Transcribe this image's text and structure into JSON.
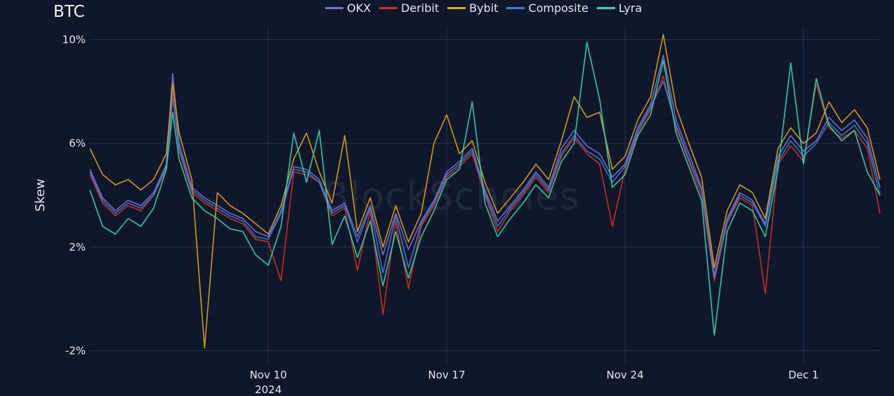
{
  "chart_data": {
    "type": "line",
    "title": "BTC",
    "watermark": "BlockScholes",
    "ylabel": "Skew",
    "ylim": [
      -2.5,
      10.5
    ],
    "y_ticks": [
      {
        "value": -2,
        "label": "-2%"
      },
      {
        "value": 2,
        "label": "2%"
      },
      {
        "value": 6,
        "label": "6%"
      },
      {
        "value": 10,
        "label": "10%"
      }
    ],
    "xlim": [
      0,
      31
    ],
    "x_ticks": [
      {
        "value": 7,
        "label": "Nov 10",
        "sublabel": "2024"
      },
      {
        "value": 14,
        "label": "Nov 17",
        "sublabel": ""
      },
      {
        "value": 21,
        "label": "Nov 24",
        "sublabel": ""
      },
      {
        "value": 28,
        "label": "Dec 1",
        "sublabel": ""
      }
    ],
    "legend_position": "top-center",
    "grid": true,
    "series": [
      {
        "name": "OKX",
        "color": "#7c6fd6",
        "x": [
          0,
          0.5,
          1,
          1.5,
          2,
          2.5,
          3,
          3.25,
          3.5,
          4,
          4.5,
          5,
          5.5,
          6,
          6.5,
          7,
          7.5,
          8,
          8.5,
          9,
          9.5,
          10,
          10.5,
          11,
          11.5,
          12,
          12.5,
          13,
          13.5,
          14,
          14.5,
          15,
          15.5,
          16,
          16.5,
          17,
          17.5,
          18,
          18.5,
          19,
          19.5,
          20,
          20.5,
          21,
          21.5,
          22,
          22.5,
          23,
          23.5,
          24,
          24.5,
          25,
          25.5,
          26,
          26.5,
          27,
          27.5,
          28,
          28.5,
          29,
          29.5,
          30,
          30.5,
          31
        ],
        "y": [
          5.0,
          3.9,
          3.4,
          3.8,
          3.6,
          4.1,
          5.2,
          8.7,
          6.0,
          4.3,
          3.9,
          3.6,
          3.3,
          3.1,
          2.6,
          2.4,
          3.4,
          5.1,
          5.0,
          4.6,
          3.4,
          3.7,
          2.4,
          3.6,
          1.7,
          3.3,
          1.9,
          3.0,
          3.8,
          4.9,
          5.3,
          5.8,
          4.2,
          3.0,
          3.6,
          4.2,
          4.9,
          4.3,
          5.8,
          6.5,
          5.9,
          5.6,
          4.7,
          5.2,
          6.6,
          7.5,
          9.4,
          6.9,
          5.6,
          4.3,
          0.9,
          3.1,
          4.1,
          3.8,
          2.9,
          5.5,
          6.3,
          5.7,
          6.1,
          7.0,
          6.5,
          6.9,
          6.2,
          4.3
        ]
      },
      {
        "name": "Deribit",
        "color": "#d72f1f",
        "x": [
          0,
          0.5,
          1,
          1.5,
          2,
          2.5,
          3,
          3.25,
          3.5,
          4,
          4.5,
          5,
          5.5,
          6,
          6.5,
          7,
          7.5,
          8,
          8.5,
          9,
          9.5,
          10,
          10.5,
          11,
          11.5,
          12,
          12.5,
          13,
          13.5,
          14,
          14.5,
          15,
          15.5,
          16,
          16.5,
          17,
          17.5,
          18,
          18.5,
          19,
          19.5,
          20,
          20.5,
          21,
          21.5,
          22,
          22.5,
          23,
          23.5,
          24,
          24.5,
          25,
          25.5,
          26,
          26.5,
          27,
          27.5,
          28,
          28.5,
          29,
          29.5,
          30,
          30.5,
          31
        ],
        "y": [
          4.8,
          3.7,
          3.2,
          3.6,
          3.4,
          4.0,
          5.0,
          8.0,
          5.7,
          4.1,
          3.7,
          3.4,
          3.1,
          2.9,
          2.3,
          2.2,
          0.7,
          4.9,
          4.8,
          4.5,
          3.2,
          3.5,
          1.1,
          3.4,
          -0.6,
          3.0,
          0.4,
          2.8,
          3.6,
          4.7,
          5.1,
          5.6,
          4.0,
          2.6,
          3.4,
          4.0,
          4.7,
          4.1,
          5.5,
          6.2,
          5.6,
          5.2,
          2.8,
          5.0,
          6.4,
          7.3,
          8.6,
          6.6,
          5.3,
          4.0,
          0.7,
          2.9,
          3.9,
          3.6,
          0.2,
          5.2,
          5.9,
          5.3,
          8.3,
          6.6,
          6.2,
          6.5,
          5.8,
          3.3
        ]
      },
      {
        "name": "Bybit",
        "color": "#e0a414",
        "x": [
          0,
          0.5,
          1,
          1.5,
          2,
          2.5,
          3,
          3.25,
          3.5,
          4,
          4.5,
          5,
          5.5,
          6,
          6.5,
          7,
          7.5,
          8,
          8.5,
          9,
          9.5,
          10,
          10.5,
          11,
          11.5,
          12,
          12.5,
          13,
          13.5,
          14,
          14.5,
          15,
          15.5,
          16,
          16.5,
          17,
          17.5,
          18,
          18.5,
          19,
          19.5,
          20,
          20.5,
          21,
          21.5,
          22,
          22.5,
          23,
          23.5,
          24,
          24.5,
          25,
          25.5,
          26,
          26.5,
          27,
          27.5,
          28,
          28.5,
          29,
          29.5,
          30,
          30.5,
          31
        ],
        "y": [
          5.8,
          4.8,
          4.4,
          4.6,
          4.2,
          4.6,
          5.6,
          8.3,
          6.4,
          4.6,
          -1.9,
          4.1,
          3.6,
          3.3,
          2.9,
          2.5,
          3.6,
          5.4,
          6.4,
          4.9,
          3.7,
          6.3,
          2.6,
          3.9,
          2.0,
          3.6,
          2.2,
          3.3,
          6.0,
          7.1,
          5.6,
          6.1,
          4.5,
          3.3,
          3.9,
          4.5,
          5.2,
          4.6,
          6.1,
          7.8,
          7.0,
          7.2,
          5.0,
          5.5,
          6.9,
          7.8,
          10.2,
          7.4,
          6.0,
          4.7,
          1.2,
          3.4,
          4.4,
          4.1,
          3.1,
          5.8,
          6.6,
          6.0,
          6.4,
          7.6,
          6.8,
          7.3,
          6.6,
          4.6
        ]
      },
      {
        "name": "Composite",
        "color": "#3b7dd8",
        "x": [
          0,
          0.5,
          1,
          1.5,
          2,
          2.5,
          3,
          3.25,
          3.5,
          4,
          4.5,
          5,
          5.5,
          6,
          6.5,
          7,
          7.5,
          8,
          8.5,
          9,
          9.5,
          10,
          10.5,
          11,
          11.5,
          12,
          12.5,
          13,
          13.5,
          14,
          14.5,
          15,
          15.5,
          16,
          16.5,
          17,
          17.5,
          18,
          18.5,
          19,
          19.5,
          20,
          20.5,
          21,
          21.5,
          22,
          22.5,
          23,
          23.5,
          24,
          24.5,
          25,
          25.5,
          26,
          26.5,
          27,
          27.5,
          28,
          28.5,
          29,
          29.5,
          30,
          30.5,
          31
        ],
        "y": [
          4.9,
          3.8,
          3.3,
          3.7,
          3.5,
          4.0,
          5.1,
          7.8,
          5.8,
          4.2,
          3.8,
          3.5,
          3.2,
          3.0,
          2.4,
          2.3,
          3.3,
          5.0,
          4.9,
          4.5,
          3.3,
          3.6,
          2.2,
          3.5,
          1.0,
          3.2,
          1.2,
          2.9,
          3.7,
          4.8,
          5.2,
          5.7,
          4.1,
          2.8,
          3.5,
          4.1,
          4.8,
          4.2,
          5.6,
          6.3,
          5.7,
          5.4,
          4.5,
          5.1,
          6.5,
          7.4,
          8.4,
          6.7,
          5.4,
          4.2,
          0.8,
          3.0,
          4.0,
          3.7,
          2.8,
          5.3,
          6.1,
          5.5,
          6.0,
          6.8,
          6.3,
          6.7,
          6.0,
          4.0
        ]
      },
      {
        "name": "Lyra",
        "color": "#2ad9ae",
        "x": [
          0,
          0.5,
          1,
          1.5,
          2,
          2.5,
          3,
          3.25,
          3.5,
          4,
          4.5,
          5,
          5.5,
          6,
          6.5,
          7,
          7.5,
          8,
          8.5,
          9,
          9.5,
          10,
          10.5,
          11,
          11.5,
          12,
          12.5,
          13,
          13.5,
          14,
          14.5,
          15,
          15.5,
          16,
          16.5,
          17,
          17.5,
          18,
          18.5,
          19,
          19.5,
          20,
          20.5,
          21,
          21.5,
          22,
          22.5,
          23,
          23.5,
          24,
          24.5,
          25,
          25.5,
          26,
          26.5,
          27,
          27.5,
          28,
          28.5,
          29,
          29.5,
          30,
          30.5,
          31
        ],
        "y": [
          4.2,
          2.8,
          2.5,
          3.1,
          2.8,
          3.5,
          5.0,
          7.2,
          5.4,
          3.9,
          3.4,
          3.1,
          2.7,
          2.6,
          1.7,
          1.3,
          2.8,
          6.4,
          4.5,
          6.5,
          2.1,
          3.2,
          1.6,
          3.0,
          0.5,
          2.6,
          0.8,
          2.4,
          3.4,
          4.6,
          5.0,
          7.6,
          3.7,
          2.4,
          3.1,
          3.7,
          4.4,
          3.9,
          5.3,
          6.0,
          9.9,
          7.7,
          4.3,
          4.8,
          6.3,
          7.1,
          9.2,
          6.4,
          5.1,
          3.8,
          -1.4,
          2.6,
          3.7,
          3.4,
          2.4,
          5.0,
          9.1,
          5.2,
          8.5,
          6.7,
          6.1,
          6.5,
          4.9,
          4.0
        ]
      }
    ]
  }
}
